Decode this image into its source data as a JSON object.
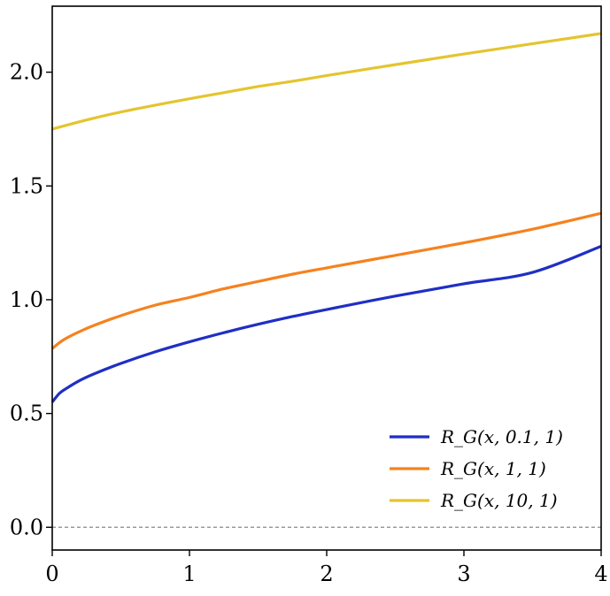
{
  "chart_data": {
    "type": "line",
    "title": "",
    "xlabel": "",
    "ylabel": "",
    "xlim": [
      0,
      4
    ],
    "ylim": [
      -0.1,
      2.29
    ],
    "xticks": [
      0,
      1,
      2,
      3,
      4
    ],
    "xtick_labels": [
      "0",
      "1",
      "2",
      "3",
      "4"
    ],
    "yticks": [
      0.0,
      0.5,
      1.0,
      1.5,
      2.0
    ],
    "ytick_labels": [
      "0.0",
      "0.5",
      "1.0",
      "1.5",
      "2.0"
    ],
    "grid": false,
    "legend_position": "lower-right",
    "reference_line": {
      "y": 0,
      "style": "dashed",
      "color": "#888888"
    },
    "series": [
      {
        "name": "R_G(x, 0.1, 1)",
        "color": "#1f2fc4",
        "x": [
          0,
          0.05,
          0.1,
          0.2,
          0.3,
          0.5,
          0.75,
          1.0,
          1.25,
          1.5,
          1.75,
          2.0,
          2.5,
          3.0,
          3.5,
          4.0
        ],
        "y": [
          0.55,
          0.587,
          0.609,
          0.645,
          0.673,
          0.72,
          0.771,
          0.815,
          0.855,
          0.892,
          0.926,
          0.957,
          1.016,
          1.07,
          1.12,
          1.235
        ]
      },
      {
        "name": "R_G(x, 1, 1)",
        "color": "#f5821f",
        "x": [
          0,
          0.05,
          0.1,
          0.2,
          0.3,
          0.5,
          0.75,
          1.0,
          1.25,
          1.5,
          1.75,
          2.0,
          2.5,
          3.0,
          3.5,
          4.0
        ],
        "y": [
          0.785,
          0.81,
          0.83,
          0.86,
          0.886,
          0.93,
          0.976,
          1.01,
          1.048,
          1.08,
          1.112,
          1.14,
          1.195,
          1.25,
          1.31,
          1.38
        ]
      },
      {
        "name": "R_G(x, 10, 1)",
        "color": "#e3c52f",
        "x": [
          0,
          0.25,
          0.5,
          0.75,
          1.0,
          1.25,
          1.5,
          1.75,
          2.0,
          2.5,
          3.0,
          3.5,
          4.0
        ],
        "y": [
          1.75,
          1.79,
          1.825,
          1.855,
          1.883,
          1.91,
          1.937,
          1.96,
          1.985,
          2.033,
          2.08,
          2.125,
          2.17
        ]
      }
    ]
  }
}
